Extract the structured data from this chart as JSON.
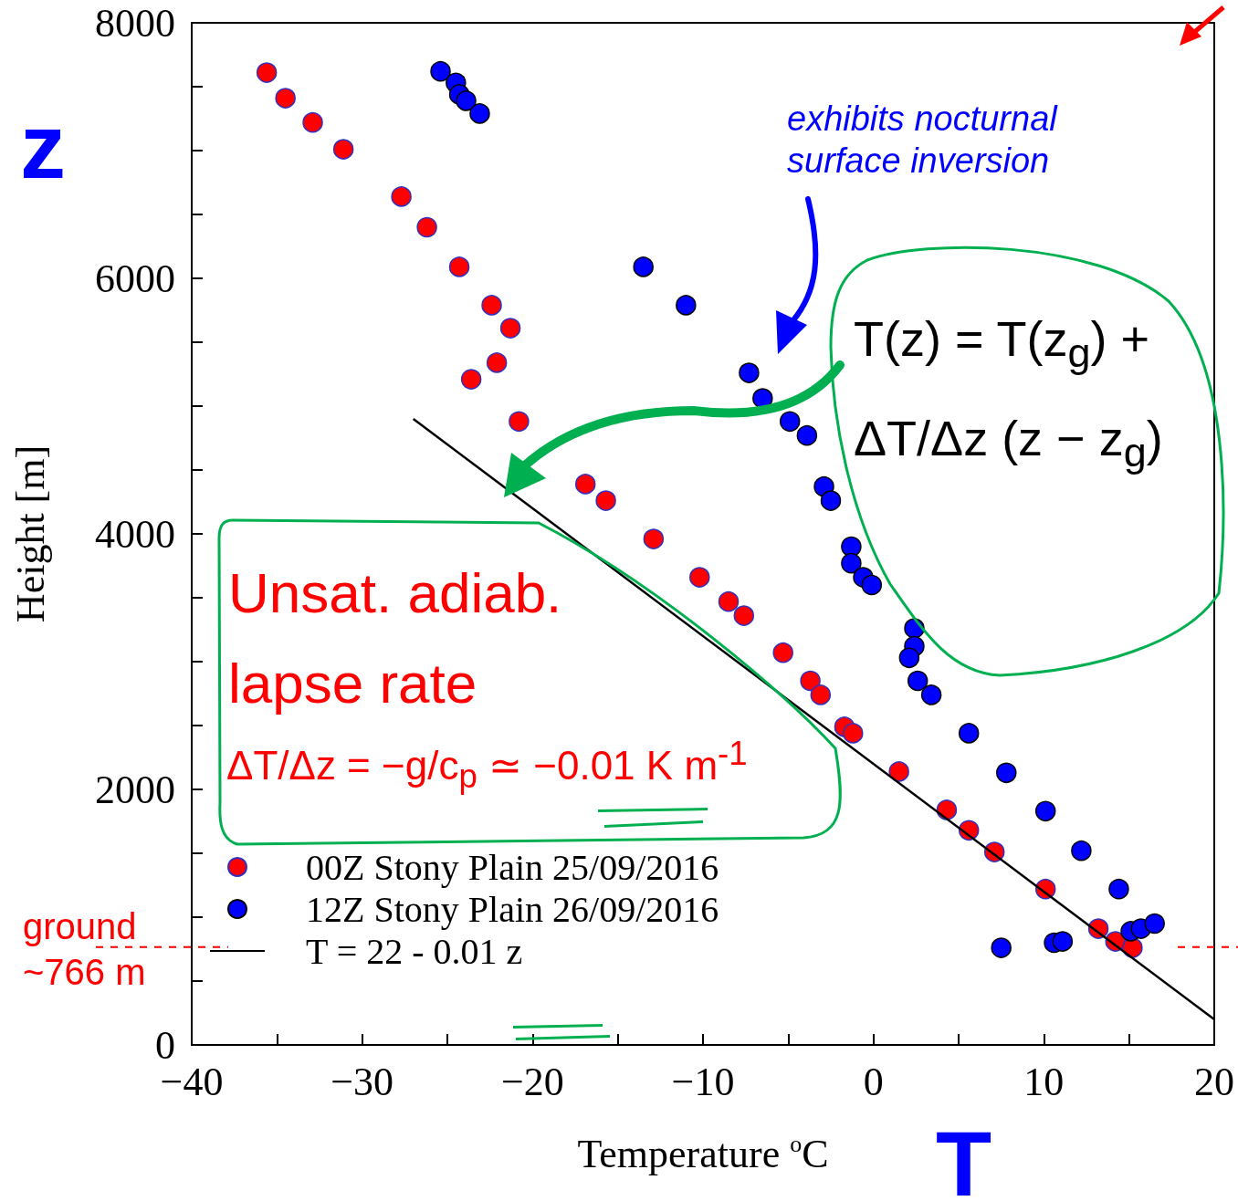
{
  "chart_data": {
    "type": "scatter",
    "xlabel": "Temperature $^{o}$C",
    "ylabel": "Height [m]",
    "xlim": [
      -40,
      20
    ],
    "ylim": [
      0,
      8000
    ],
    "marker": "circle",
    "legend": "bottom left",
    "grid": false,
    "xticks": [
      {
        "value": -40,
        "label": "−40"
      },
      {
        "value": -35,
        "label": null
      },
      {
        "value": -30,
        "label": "−30"
      },
      {
        "value": -25,
        "label": null
      },
      {
        "value": -20,
        "label": "−20"
      },
      {
        "value": -15,
        "label": null
      },
      {
        "value": -10,
        "label": "−10"
      },
      {
        "value": -5,
        "label": null
      },
      0,
      {
        "value": 5,
        "label": null
      },
      10,
      {
        "value": 15,
        "label": null
      },
      20
    ],
    "yticks": [
      0,
      {
        "value": 500,
        "label": null
      },
      {
        "value": 1000,
        "label": null
      },
      {
        "value": 1500,
        "label": null
      },
      2000,
      {
        "value": 2500,
        "label": null
      },
      {
        "value": 3000,
        "label": null
      },
      {
        "value": 3500,
        "label": null
      },
      4000,
      {
        "value": 4500,
        "label": null
      },
      {
        "value": 5000,
        "label": null
      },
      {
        "value": 5500,
        "label": null
      },
      6000,
      {
        "value": 6500,
        "label": null
      },
      {
        "value": 7000,
        "label": null
      },
      {
        "value": 7500,
        "label": null
      },
      8000
    ],
    "series": [
      {
        "name": "00Z Stony Plain 25/09/2016",
        "color": "#ff0000",
        "x": [
          -35.6,
          -34.5,
          -32.9,
          -31.1,
          -27.7,
          -26.2,
          -24.3,
          -22.4,
          -21.3,
          -22.1,
          -23.6,
          -20.8,
          -16.9,
          -15.7,
          -12.9,
          -10.2,
          -8.5,
          -7.6,
          -5.3,
          -3.7,
          -3.1,
          -1.7,
          -1.2,
          1.5,
          4.3,
          5.6,
          7.1,
          10.1,
          13.2,
          14.2,
          15.2
        ],
        "values": [
          7610,
          7410,
          7220,
          7010,
          6640,
          6400,
          6090,
          5790,
          5610,
          5340,
          5210,
          4880,
          4390,
          4260,
          3960,
          3660,
          3470,
          3360,
          3070,
          2850,
          2740,
          2490,
          2440,
          2140,
          1840,
          1680,
          1510,
          1220,
          910,
          810,
          760
        ]
      },
      {
        "name": "12Z Stony Plain 26/09/2016",
        "color": "#0000ff",
        "x": [
          -25.4,
          -24.5,
          -24.3,
          -23.9,
          -23.1,
          -13.5,
          -11.0,
          -7.3,
          -6.5,
          -4.9,
          -3.9,
          -2.9,
          -2.5,
          -1.3,
          -1.3,
          -0.6,
          -0.1,
          2.4,
          2.4,
          2.1,
          2.6,
          3.4,
          5.6,
          7.8,
          10.1,
          12.2,
          14.4,
          7.5,
          10.6,
          11.1,
          15.1,
          15.7,
          16.5
        ],
        "values": [
          7620,
          7530,
          7440,
          7390,
          7290,
          6090,
          5790,
          5260,
          5060,
          4880,
          4770,
          4370,
          4260,
          3900,
          3770,
          3660,
          3600,
          3260,
          3120,
          3030,
          2850,
          2740,
          2440,
          2130,
          1830,
          1520,
          1220,
          760,
          800,
          810,
          890,
          910,
          950
        ]
      },
      {
        "name": "T = 22 - 0.01 z",
        "type": "line",
        "marker": "none",
        "color": "#000000",
        "x": [
          -27,
          20
        ],
        "values": [
          4900,
          200
        ]
      }
    ],
    "ref_lines": [
      {
        "axis": "y",
        "value": 766,
        "label": "ground ~766 m",
        "color": "#ff0000",
        "line_style": "dashed"
      }
    ],
    "annotations": [
      "exhibits nocturnal surface inversion",
      "T(z) = T(z$_{g}$) + ΔT/Δz (z − z$_{g}$)",
      "Unsat. adiab. lapse rate",
      "ΔT/Δz = −g/c$_{p}$ ≃ −0.01 K m$^{-1}$",
      "z",
      "T"
    ]
  }
}
